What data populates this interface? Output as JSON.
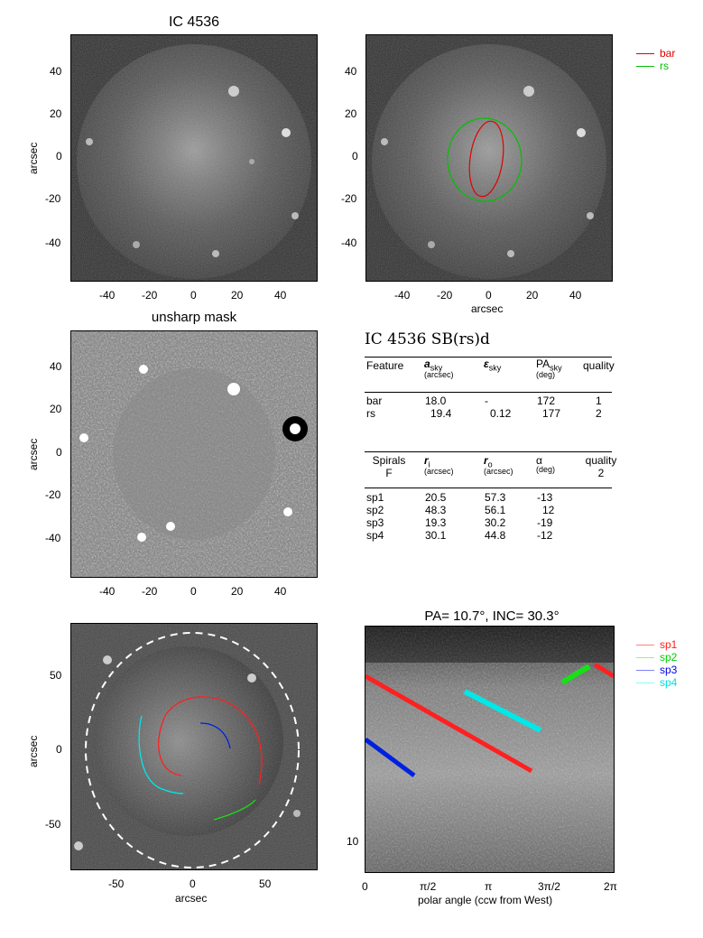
{
  "panel1": {
    "title": "IC 4536",
    "ylabel": "arcsec",
    "xticks": [
      "-40",
      "-20",
      "0",
      "20",
      "40"
    ],
    "yticks": [
      "40",
      "20",
      "0",
      "-20",
      "-40"
    ]
  },
  "panel2": {
    "xlabel": "arcsec",
    "xticks": [
      "-40",
      "-20",
      "0",
      "20",
      "40"
    ],
    "yticks": [
      "40",
      "20",
      "0",
      "-20",
      "-40"
    ],
    "legend": [
      {
        "label": "bar",
        "color": "#e00000"
      },
      {
        "label": "rs",
        "color": "#00c000"
      }
    ]
  },
  "panel3": {
    "title": "unsharp mask",
    "ylabel": "arcsec",
    "xticks": [
      "-40",
      "-20",
      "0",
      "20",
      "40"
    ],
    "yticks": [
      "40",
      "20",
      "0",
      "-20",
      "-40"
    ]
  },
  "table": {
    "title": "IC 4536  SB(rs)d",
    "features_header": {
      "c1": "Feature",
      "c2": "a",
      "c2sub": "sky",
      "c2unit": "(arcsec)",
      "c3": "ε",
      "c3sub": "sky",
      "c4": "PA",
      "c4sub": "sky",
      "c4unit": "(deg)",
      "c5": "quality"
    },
    "features": [
      {
        "name": "bar",
        "a": "18.0",
        "eps": "-",
        "pa": "172",
        "q": "1"
      },
      {
        "name": "rs",
        "a": "19.4",
        "eps": "0.12",
        "pa": "177",
        "q": "2"
      }
    ],
    "spirals_header": {
      "c1": "Spirals",
      "c1b": "F",
      "c2": "r",
      "c2sub": "i",
      "c2unit": "(arcsec)",
      "c3": "r",
      "c3sub": "o",
      "c3unit": "(arcsec)",
      "c4": "α",
      "c4unit": "(deg)",
      "c5": "quality",
      "c5b": "2"
    },
    "spirals": [
      {
        "name": "sp1",
        "ri": "20.5",
        "ro": "57.3",
        "alpha": "-13"
      },
      {
        "name": "sp2",
        "ri": "48.3",
        "ro": "56.1",
        "alpha": "12"
      },
      {
        "name": "sp3",
        "ri": "19.3",
        "ro": "30.2",
        "alpha": "-19"
      },
      {
        "name": "sp4",
        "ri": "30.1",
        "ro": "44.8",
        "alpha": "-12"
      }
    ]
  },
  "panel5": {
    "xlabel": "arcsec",
    "ylabel": "arcsec",
    "xticks": [
      "-50",
      "0",
      "50"
    ],
    "yticks": [
      "50",
      "0",
      "-50"
    ]
  },
  "panel6": {
    "title": "PA=  10.7°, INC=  30.3°",
    "xlabel": "polar angle (ccw from West)",
    "xticks": [
      "0",
      "π/2",
      "π",
      "3π/2",
      "2π"
    ],
    "yticks": [
      "10"
    ],
    "legend": [
      {
        "label": "sp1",
        "color": "#ff2020"
      },
      {
        "label": "sp2",
        "color": "#00e000"
      },
      {
        "label": "sp3",
        "color": "#0000e0"
      },
      {
        "label": "sp4",
        "color": "#00e0e0"
      }
    ]
  },
  "colors": {
    "sp1": "#ff2020",
    "sp2": "#18e018",
    "sp3": "#0020e0",
    "sp4": "#00e8e8",
    "bar": "#e00000",
    "rs": "#00c000"
  }
}
